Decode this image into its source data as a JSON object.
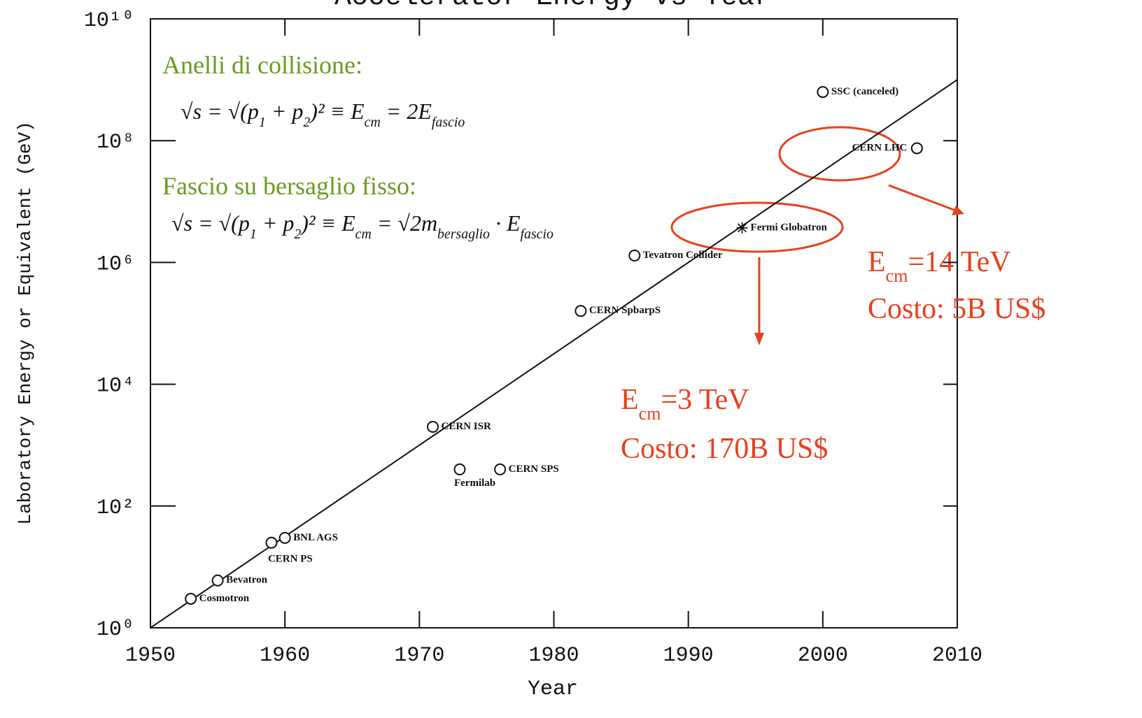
{
  "chart_data": {
    "type": "scatter",
    "title": "Accelerator Energy vs Year",
    "x_label": "Year",
    "y_label": "Laboratory Energy or Equivalent (GeV)",
    "xlim": [
      1950,
      2010
    ],
    "xticks": [
      1950,
      1960,
      1970,
      1980,
      1990,
      2000,
      2010
    ],
    "ylim": [
      1,
      10000000000
    ],
    "log_y": true,
    "yticks": [
      {
        "value": 1,
        "label": "10⁰"
      },
      {
        "value": 100,
        "label": "10²"
      },
      {
        "value": 10000,
        "label": "10⁴"
      },
      {
        "value": 1000000,
        "label": "10⁶"
      },
      {
        "value": 100000000,
        "label": "10⁸"
      },
      {
        "value": 10000000000,
        "label": "10¹⁰"
      }
    ],
    "labels": [
      "Cosmotron",
      "Bevatron",
      "CERN PS",
      "BNL AGS",
      "CERN ISR",
      "Fermilab",
      "CERN SPS",
      "CERN SpbarpS",
      "Tevatron Collider",
      "Fermi Globatron",
      "CERN LHC",
      "SSC (canceled)"
    ],
    "x": [
      1953,
      1955,
      1959,
      1960,
      1971,
      1973,
      1976,
      1982,
      1986,
      1994,
      2007,
      2000
    ],
    "values": [
      3,
      6,
      25,
      30,
      2000,
      400,
      400,
      160000,
      1300000,
      3700000,
      75000000,
      630000000
    ],
    "markers": [
      "circle",
      "circle",
      "circle",
      "circle",
      "circle",
      "circle",
      "circle",
      "circle",
      "circle",
      "star",
      "circle",
      "circle"
    ],
    "color": "#111111",
    "trend": {
      "x": [
        1950,
        2010
      ],
      "values": [
        1,
        1000000000
      ]
    },
    "annotations": {
      "collider_title": "Anelli di collisione:",
      "collider_formula": [
        {
          "t": "√s = √(p"
        },
        {
          "t": "1",
          "sub": true
        },
        {
          "t": " + p"
        },
        {
          "t": "2",
          "sub": true
        },
        {
          "t": ")² ≡ E"
        },
        {
          "t": "cm",
          "sub": true
        },
        {
          "t": " = 2E"
        },
        {
          "t": "fascio",
          "sub": true
        }
      ],
      "fixed_title": "Fascio su bersaglio fisso:",
      "fixed_formula": [
        {
          "t": "√s = √(p"
        },
        {
          "t": "1",
          "sub": true
        },
        {
          "t": " + p"
        },
        {
          "t": "2",
          "sub": true
        },
        {
          "t": ")² ≡ E"
        },
        {
          "t": "cm",
          "sub": true
        },
        {
          "t": " = √2m"
        },
        {
          "t": "bersaglio",
          "sub": true
        },
        {
          "t": " · E"
        },
        {
          "t": "fascio",
          "sub": true
        }
      ],
      "lhc_energy": [
        {
          "t": "E"
        },
        {
          "t": "cm",
          "sub": true
        },
        {
          "t": "=14 TeV"
        }
      ],
      "lhc_cost": "Costo: 5B US$",
      "globatron_energy": [
        {
          "t": "E"
        },
        {
          "t": "cm",
          "sub": true
        },
        {
          "t": "=3 TeV"
        }
      ],
      "globatron_cost": "Costo: 170B US$"
    }
  }
}
